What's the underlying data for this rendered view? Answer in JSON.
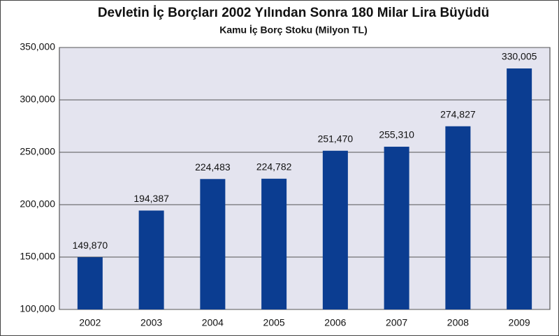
{
  "chart_data": {
    "type": "bar",
    "title": "Devletin İç Borçları 2002 Yılından Sonra 180 Milar Lira Büyüdü",
    "subtitle": "Kamu İç Borç Stoku (Milyon TL)",
    "categories": [
      "2002",
      "2003",
      "2004",
      "2005",
      "2006",
      "2007",
      "2008",
      "2009"
    ],
    "values": [
      149870,
      194387,
      224483,
      224782,
      251470,
      255310,
      274827,
      330005
    ],
    "value_labels": [
      "149,870",
      "194,387",
      "224,483",
      "224,782",
      "251,470",
      "255,310",
      "274,827",
      "330,005"
    ],
    "color": "#0b3d91",
    "ylim": [
      100000,
      350000
    ],
    "yticks": [
      {
        "value": 100000,
        "label": "100,000"
      },
      {
        "value": 150000,
        "label": "150,000"
      },
      {
        "value": 200000,
        "label": "200,000"
      },
      {
        "value": 250000,
        "label": "250,000"
      },
      {
        "value": 300000,
        "label": "300,000"
      },
      {
        "value": 350000,
        "label": "350,000"
      }
    ],
    "grid": true
  }
}
